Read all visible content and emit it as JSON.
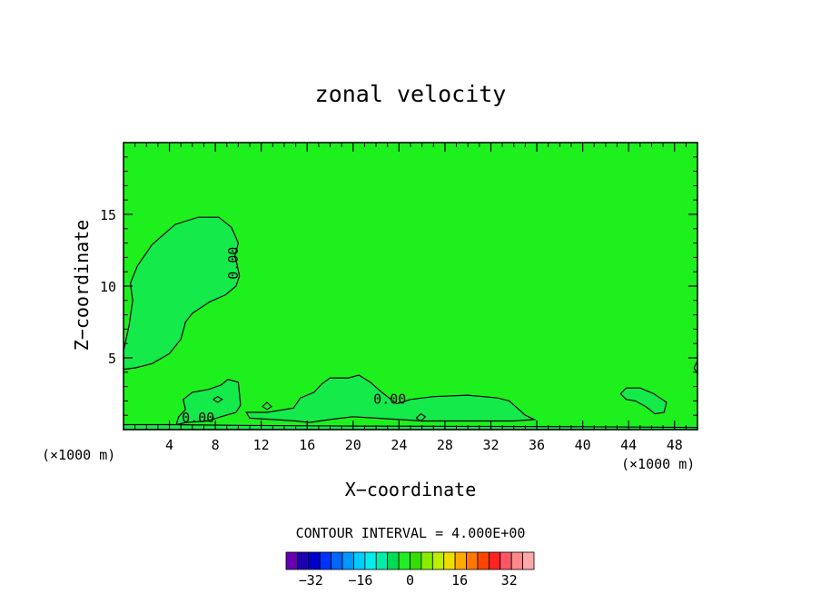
{
  "chart_data": {
    "type": "heatmap",
    "title": "zonal velocity",
    "xlabel": "X−coordinate",
    "ylabel": "Z−coordinate",
    "x_unit_left": "(×1000 m)",
    "x_unit_right": "(×1000 m)",
    "xlim": [
      0,
      50
    ],
    "ylim": [
      0,
      20
    ],
    "xticks": [
      4,
      8,
      12,
      16,
      20,
      24,
      28,
      32,
      36,
      40,
      44,
      48
    ],
    "xtick_labels": [
      "4",
      "8",
      "12",
      "16",
      "20",
      "24",
      "28",
      "32",
      "36",
      "40",
      "44",
      "48"
    ],
    "yticks": [
      5,
      10,
      15
    ],
    "ytick_labels": [
      "5",
      "10",
      "15"
    ],
    "background_fill": "#1EF01E",
    "region_fill": "#14EA4A",
    "contour_interval_label": "CONTOUR INTERVAL = 4.000E+00",
    "contour_labels": [
      {
        "text": "0.00",
        "x": 9.6,
        "y": 11.6,
        "rotate": -90
      },
      {
        "text": "0.00",
        "x": 23.2,
        "y": 2.1,
        "rotate": 0
      },
      {
        "text": "0.00",
        "x": 6.5,
        "y": 0.8,
        "rotate": 0
      }
    ],
    "regions": [
      {
        "name": "upper-left-lobe",
        "points": [
          [
            0,
            4.2
          ],
          [
            1,
            4.3
          ],
          [
            2.5,
            4.6
          ],
          [
            4,
            5.3
          ],
          [
            5,
            6.3
          ],
          [
            5.4,
            7.5
          ],
          [
            6,
            8.1
          ],
          [
            7.5,
            8.9
          ],
          [
            8.9,
            9.4
          ],
          [
            9.8,
            10.0
          ],
          [
            10.1,
            10.7
          ],
          [
            9.9,
            11.5
          ],
          [
            9.7,
            12.1
          ],
          [
            10,
            13.0
          ],
          [
            9.4,
            14.1
          ],
          [
            8.3,
            14.8
          ],
          [
            6.5,
            14.8
          ],
          [
            4.5,
            14.3
          ],
          [
            2.5,
            12.9
          ],
          [
            1.2,
            11.4
          ],
          [
            0.6,
            10.2
          ],
          [
            0.8,
            9.0
          ],
          [
            0.5,
            7.3
          ],
          [
            0,
            5.5
          ]
        ]
      },
      {
        "name": "bottom-left-patch",
        "points": [
          [
            4.6,
            0.35
          ],
          [
            5.5,
            0.5
          ],
          [
            7.3,
            0.6
          ],
          [
            8.5,
            0.9
          ],
          [
            9.8,
            1.2
          ],
          [
            10.2,
            1.7
          ],
          [
            10.1,
            2.5
          ],
          [
            10,
            3.3
          ],
          [
            9.1,
            3.5
          ],
          [
            8.5,
            3.1
          ],
          [
            7.4,
            2.8
          ],
          [
            6,
            2.6
          ],
          [
            5.2,
            2.1
          ],
          [
            5.4,
            1.4
          ],
          [
            4.8,
            0.9
          ]
        ]
      },
      {
        "name": "middle-band",
        "points": [
          [
            11,
            0.8
          ],
          [
            13,
            0.7
          ],
          [
            15,
            0.6
          ],
          [
            16.2,
            0.5
          ],
          [
            18,
            0.7
          ],
          [
            20,
            0.9
          ],
          [
            22,
            0.8
          ],
          [
            24,
            0.7
          ],
          [
            26,
            0.6
          ],
          [
            30,
            0.6
          ],
          [
            34,
            0.6
          ],
          [
            35.8,
            0.7
          ],
          [
            35,
            1.0
          ],
          [
            34.3,
            1.5
          ],
          [
            33.6,
            2.0
          ],
          [
            32.6,
            2.2
          ],
          [
            30,
            2.4
          ],
          [
            27,
            2.3
          ],
          [
            25,
            2.1
          ],
          [
            23.8,
            1.8
          ],
          [
            22.5,
            2.6
          ],
          [
            21.5,
            3.3
          ],
          [
            20.5,
            3.8
          ],
          [
            19.6,
            3.6
          ],
          [
            18,
            3.6
          ],
          [
            17.3,
            3.2
          ],
          [
            16.6,
            2.6
          ],
          [
            15.4,
            2.2
          ],
          [
            14.8,
            1.5
          ],
          [
            12.5,
            1.2
          ],
          [
            10.7,
            1.2
          ]
        ]
      },
      {
        "name": "right-blob",
        "points": [
          [
            43.3,
            2.5
          ],
          [
            43.8,
            2.9
          ],
          [
            45,
            2.9
          ],
          [
            46.2,
            2.5
          ],
          [
            47.3,
            1.9
          ],
          [
            47.1,
            1.2
          ],
          [
            46.3,
            1.1
          ],
          [
            45.5,
            1.6
          ],
          [
            44.6,
            2.0
          ],
          [
            43.8,
            2.1
          ]
        ]
      },
      {
        "name": "right-edge-bump",
        "points": [
          [
            50,
            3.9
          ],
          [
            49.7,
            4.3
          ],
          [
            50,
            4.8
          ]
        ]
      },
      {
        "name": "bottom-strip",
        "points": [
          [
            0,
            0
          ],
          [
            50,
            0
          ],
          [
            50,
            0.15
          ],
          [
            40,
            0.2
          ],
          [
            20,
            0.25
          ],
          [
            10,
            0.3
          ],
          [
            4,
            0.35
          ],
          [
            0,
            0.35
          ]
        ]
      }
    ],
    "extra_contours": [
      {
        "name": "small-loop-1",
        "points": [
          [
            12.1,
            1.6
          ],
          [
            12.5,
            1.9
          ],
          [
            12.9,
            1.6
          ],
          [
            12.5,
            1.4
          ],
          [
            12.1,
            1.6
          ]
        ]
      },
      {
        "name": "small-loop-2",
        "points": [
          [
            25.5,
            0.8
          ],
          [
            25.9,
            1.1
          ],
          [
            26.3,
            0.9
          ],
          [
            25.9,
            0.6
          ],
          [
            25.5,
            0.8
          ]
        ]
      },
      {
        "name": "small-loop-3",
        "points": [
          [
            7.8,
            2.1
          ],
          [
            8.2,
            2.3
          ],
          [
            8.6,
            2.1
          ],
          [
            8.2,
            1.9
          ],
          [
            7.8,
            2.1
          ]
        ]
      }
    ],
    "colorbar": {
      "colors": [
        "#6600B2",
        "#1D00B0",
        "#0000CC",
        "#0033FF",
        "#0066FF",
        "#0099FF",
        "#00CCFF",
        "#00EEEE",
        "#00EEAA",
        "#00DD55",
        "#22EE22",
        "#33DD00",
        "#88EE00",
        "#BBEE00",
        "#EEDD00",
        "#FFAA00",
        "#FF7700",
        "#FF4400",
        "#FF2222",
        "#FF5566",
        "#FF8888",
        "#FFAAAA"
      ],
      "tick_values": [
        -32,
        -16,
        0,
        16,
        32
      ],
      "tick_labels": [
        "−32",
        "−16",
        "0",
        "16",
        "32"
      ],
      "vmin": -40,
      "vmax": 40
    }
  }
}
